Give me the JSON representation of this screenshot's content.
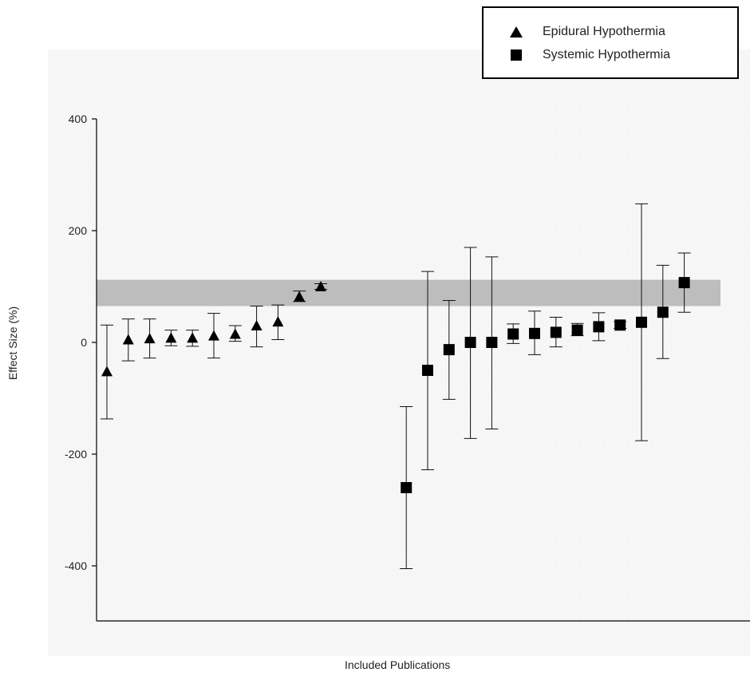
{
  "legend": {
    "items": [
      {
        "label": "Epidural Hypothermia",
        "marker": "triangle"
      },
      {
        "label": "Systemic Hypothermia",
        "marker": "square"
      }
    ]
  },
  "chart_data": {
    "type": "scatter",
    "ylabel": "Effect Size (%)",
    "xlabel": "Included Publications",
    "ylim": [
      -500,
      400
    ],
    "yticks": [
      400,
      200,
      0,
      -200,
      -400
    ],
    "grid": false,
    "legend_position": "top-right",
    "reference_band": {
      "low": 65,
      "high": 112,
      "color": "#bdbdbd"
    },
    "marker_color": "#000000",
    "series": [
      {
        "name": "Epidural Hypothermia",
        "marker": "triangle",
        "points": [
          {
            "x": 1,
            "y": -52,
            "lo": -137,
            "hi": 31
          },
          {
            "x": 2,
            "y": 5,
            "lo": -33,
            "hi": 42
          },
          {
            "x": 3,
            "y": 7,
            "lo": -28,
            "hi": 42
          },
          {
            "x": 4,
            "y": 8,
            "lo": -6,
            "hi": 22
          },
          {
            "x": 5,
            "y": 8,
            "lo": -7,
            "hi": 22
          },
          {
            "x": 6,
            "y": 12,
            "lo": -28,
            "hi": 52
          },
          {
            "x": 7,
            "y": 15,
            "lo": 2,
            "hi": 30
          },
          {
            "x": 8,
            "y": 30,
            "lo": -8,
            "hi": 65
          },
          {
            "x": 9,
            "y": 37,
            "lo": 5,
            "hi": 67
          },
          {
            "x": 10,
            "y": 82,
            "lo": 73,
            "hi": 92
          },
          {
            "x": 11,
            "y": 100,
            "lo": 95,
            "hi": 105
          }
        ]
      },
      {
        "name": "Systemic Hypothermia",
        "marker": "square",
        "points": [
          {
            "x": 15,
            "y": -260,
            "lo": -405,
            "hi": -115
          },
          {
            "x": 16,
            "y": -50,
            "lo": -228,
            "hi": 127
          },
          {
            "x": 17,
            "y": -13,
            "lo": -102,
            "hi": 75
          },
          {
            "x": 18,
            "y": 0,
            "lo": -172,
            "hi": 170
          },
          {
            "x": 19,
            "y": 0,
            "lo": -155,
            "hi": 153
          },
          {
            "x": 20,
            "y": 15,
            "lo": -2,
            "hi": 33
          },
          {
            "x": 21,
            "y": 16,
            "lo": -22,
            "hi": 56
          },
          {
            "x": 22,
            "y": 18,
            "lo": -8,
            "hi": 45
          },
          {
            "x": 23,
            "y": 22,
            "lo": 12,
            "hi": 34
          },
          {
            "x": 24,
            "y": 28,
            "lo": 3,
            "hi": 53
          },
          {
            "x": 25,
            "y": 31,
            "lo": 25,
            "hi": 37
          },
          {
            "x": 26,
            "y": 36,
            "lo": -176,
            "hi": 248
          },
          {
            "x": 27,
            "y": 54,
            "lo": -29,
            "hi": 138
          },
          {
            "x": 28,
            "y": 107,
            "lo": 54,
            "hi": 160
          }
        ]
      }
    ]
  }
}
